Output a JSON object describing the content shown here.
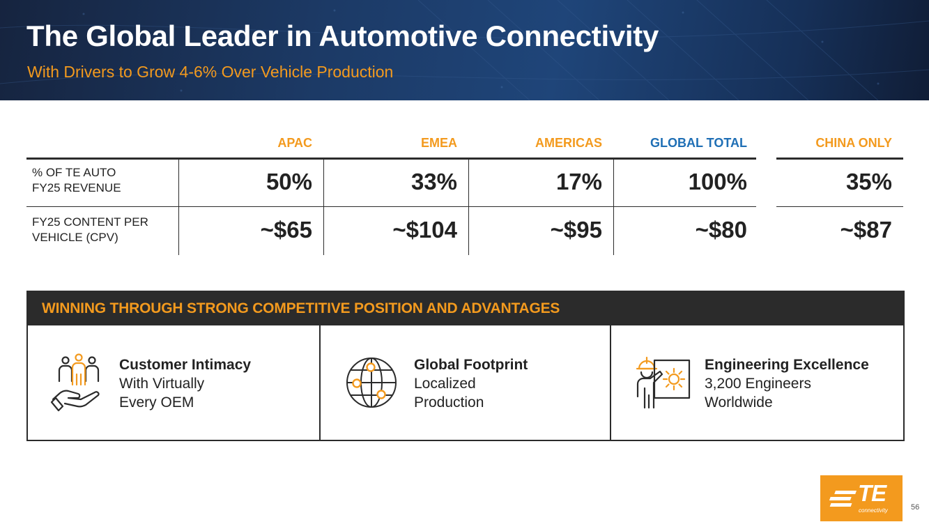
{
  "header": {
    "title": "The Global Leader in Automotive Connectivity",
    "subtitle": "With Drivers to Grow 4-6% Over Vehicle Production"
  },
  "table": {
    "columns": [
      "APAC",
      "EMEA",
      "AMERICAS",
      "GLOBAL TOTAL",
      "CHINA ONLY"
    ],
    "rows": [
      {
        "label_line1": "% OF TE AUTO",
        "label_line2": "FY25 REVENUE",
        "values": [
          "50%",
          "33%",
          "17%",
          "100%",
          "35%"
        ]
      },
      {
        "label_line1": "FY25 CONTENT PER",
        "label_line2": "VEHICLE (CPV)",
        "values": [
          "~$65",
          "~$104",
          "~$95",
          "~$80",
          "~$87"
        ]
      }
    ]
  },
  "advantages": {
    "title": "WINNING THROUGH STRONG COMPETITIVE POSITION AND ADVANTAGES",
    "items": [
      {
        "icon": "customer-hand-icon",
        "heading": "Customer Intimacy",
        "line1": "With Virtually",
        "line2": "Every OEM"
      },
      {
        "icon": "globe-network-icon",
        "heading": "Global Footprint",
        "line1": "Localized",
        "line2": "Production"
      },
      {
        "icon": "engineer-gear-icon",
        "heading": "Engineering Excellence",
        "line1": "3,200 Engineers",
        "line2": "Worldwide"
      }
    ]
  },
  "logo": {
    "word": "TE",
    "sub": "connectivity"
  },
  "page_number": "56",
  "colors": {
    "accent": "#f39a1e",
    "global": "#1f6fb5",
    "dark": "#2b2b2b",
    "banner": "#1c3a66"
  }
}
